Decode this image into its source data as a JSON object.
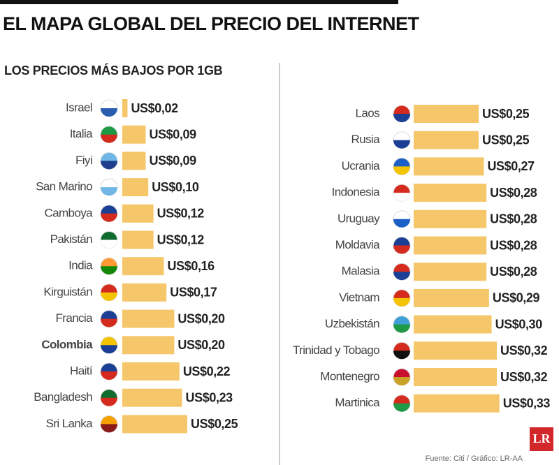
{
  "title": "EL MAPA GLOBAL DEL PRECIO DEL INTERNET",
  "subtitle": "LOS PRECIOS MÁS BAJOS POR 1GB",
  "source": "Fuente: Citi / Gráfico: LR-AA",
  "logo": "LR",
  "chart_data": [
    {
      "type": "bar",
      "color": "#f5c76a",
      "highlight_index": 9,
      "categories": [
        "Israel",
        "Italia",
        "Fiyi",
        "San Marino",
        "Camboya",
        "Pakistán",
        "India",
        "Kirguistán",
        "Francia",
        "Colombia",
        "Haití",
        "Bangladesh",
        "Sri Lanka"
      ],
      "values": [
        0.02,
        0.09,
        0.09,
        0.1,
        0.12,
        0.12,
        0.16,
        0.17,
        0.2,
        0.2,
        0.22,
        0.23,
        0.25
      ],
      "value_labels": [
        "US$0,02",
        "US$0,09",
        "US$0,09",
        "US$0,10",
        "US$0,12",
        "US$0,12",
        "US$0,16",
        "US$0,17",
        "US$0,20",
        "US$0,20",
        "US$0,22",
        "US$0,23",
        "US$0,25"
      ]
    },
    {
      "type": "bar",
      "color": "#f5c76a",
      "categories": [
        "Laos",
        "Rusia",
        "Ucrania",
        "Indonesia",
        "Uruguay",
        "Moldavia",
        "Malasia",
        "Vietnam",
        "Uzbekistán",
        "Trinidad y Tobago",
        "Montenegro",
        "Martinica"
      ],
      "values": [
        0.25,
        0.25,
        0.27,
        0.28,
        0.28,
        0.28,
        0.28,
        0.29,
        0.3,
        0.32,
        0.32,
        0.33
      ],
      "value_labels": [
        "US$0,25",
        "US$0,25",
        "US$0,27",
        "US$0,28",
        "US$0,28",
        "US$0,28",
        "US$0,28",
        "US$0,29",
        "US$0,30",
        "US$0,32",
        "US$0,32",
        "US$0,33"
      ]
    }
  ]
}
